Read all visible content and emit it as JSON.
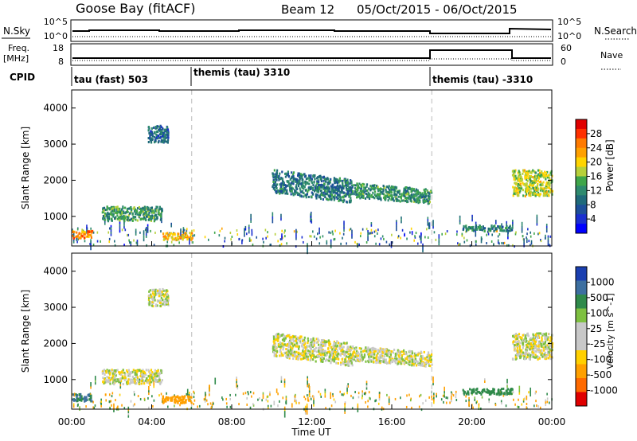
{
  "header": {
    "station": "Goose Bay (fitACF)",
    "beam": "Beam 12",
    "date_range": "05/Oct/2015 - 06/Oct/2015"
  },
  "sky_panel": {
    "left_label": "N.Sky",
    "right_label": "N.Search",
    "left_ticks": [
      "10^5",
      "10^0"
    ],
    "right_ticks": [
      "10^5",
      "10^0"
    ]
  },
  "freq_panel": {
    "left_label_1": "Freq.",
    "left_label_2": "[MHz]",
    "right_label": "Nave",
    "left_ticks": [
      "18",
      "8"
    ],
    "right_ticks": [
      "60",
      "0"
    ]
  },
  "cpid": {
    "label": "CPID",
    "segments": [
      {
        "label": "tau (fast) 503",
        "start_hour": 0
      },
      {
        "label": "themis (tau) 3310",
        "start_hour": 6
      },
      {
        "label": "themis (tau) -3310",
        "start_hour": 18
      }
    ]
  },
  "power_colorbar": {
    "label": "Power [dB]",
    "ticks": [
      "28",
      "24",
      "20",
      "16",
      "12",
      "8",
      "4"
    ],
    "colors": [
      "#e00000",
      "#ff3000",
      "#ff7a00",
      "#ffa000",
      "#ffd400",
      "#b7d03a",
      "#3fa64a",
      "#2e8a6e",
      "#1f6a7a",
      "#1d4f9a",
      "#1a2fd0",
      "#0000ff"
    ]
  },
  "velocity_colorbar": {
    "label": "Velocity [m s^-1]",
    "ticks": [
      "1000",
      "500",
      "100",
      "25",
      "-25",
      "-100",
      "-500",
      "-1000"
    ],
    "colors": [
      "#1a3fb0",
      "#3d6fa0",
      "#2f8a4a",
      "#7ec040",
      "#c8c8c8",
      "#c8c8c8",
      "#ffd000",
      "#ffa000",
      "#ff6a00",
      "#e00000"
    ]
  },
  "chart_data": [
    {
      "type": "heatmap",
      "name": "Power",
      "xlabel": "",
      "ylabel": "Slant Range [km]",
      "x_range_hours": [
        0,
        24
      ],
      "ylim_km": [
        180,
        4500
      ],
      "y_ticks": [
        1000,
        2000,
        3000,
        4000
      ],
      "z_label": "Power [dB]",
      "z_range": [
        3,
        30
      ],
      "features": [
        {
          "hours": [
            0,
            1
          ],
          "range_km": [
            400,
            650
          ],
          "power_db": 24
        },
        {
          "hours": [
            1.5,
            4.5
          ],
          "range_km": [
            850,
            1350
          ],
          "power_db": 14
        },
        {
          "hours": [
            3.8,
            4.8
          ],
          "range_km": [
            3000,
            3600
          ],
          "power_db": 10
        },
        {
          "hours": [
            4.5,
            6.0
          ],
          "range_km": [
            350,
            600
          ],
          "power_db": 22
        },
        {
          "hours": [
            10.0,
            14.0
          ],
          "range_km": [
            1600,
            2400
          ],
          "power_db": 11
        },
        {
          "hours": [
            14.0,
            18.0
          ],
          "range_km": [
            1500,
            2000
          ],
          "power_db": 13
        },
        {
          "hours": [
            19.5,
            22.0
          ],
          "range_km": [
            600,
            800
          ],
          "power_db": 12
        },
        {
          "hours": [
            22.0,
            24.0
          ],
          "range_km": [
            1500,
            2400
          ],
          "power_db": 18
        }
      ]
    },
    {
      "type": "heatmap",
      "name": "Velocity",
      "xlabel": "Time UT",
      "ylabel": "Slant Range [km]",
      "x_range_hours": [
        0,
        24
      ],
      "x_tick_labels": [
        "00:00",
        "04:00",
        "08:00",
        "12:00",
        "16:00",
        "20:00",
        "00:00"
      ],
      "ylim_km": [
        180,
        4500
      ],
      "y_ticks": [
        1000,
        2000,
        3000,
        4000
      ],
      "z_label": "Velocity [m s^-1]",
      "z_ticks": [
        1000,
        500,
        100,
        25,
        -25,
        -100,
        -500,
        -1000
      ],
      "features": [
        {
          "hours": [
            0,
            1
          ],
          "range_km": [
            400,
            650
          ],
          "velocity_ms": 300
        },
        {
          "hours": [
            1.5,
            4.5
          ],
          "range_km": [
            850,
            1350
          ],
          "velocity_ms": 0
        },
        {
          "hours": [
            3.8,
            4.8
          ],
          "range_km": [
            3000,
            3600
          ],
          "velocity_ms": 0
        },
        {
          "hours": [
            4.5,
            6.0
          ],
          "range_km": [
            350,
            600
          ],
          "velocity_ms": -150
        },
        {
          "hours": [
            10.0,
            14.0
          ],
          "range_km": [
            1600,
            2400
          ],
          "velocity_ms": 0
        },
        {
          "hours": [
            14.0,
            18.0
          ],
          "range_km": [
            1500,
            2000
          ],
          "velocity_ms": 0
        },
        {
          "hours": [
            19.5,
            22.0
          ],
          "range_km": [
            600,
            800
          ],
          "velocity_ms": 150
        },
        {
          "hours": [
            22.0,
            24.0
          ],
          "range_km": [
            1500,
            2400
          ],
          "velocity_ms": 0
        }
      ]
    }
  ]
}
